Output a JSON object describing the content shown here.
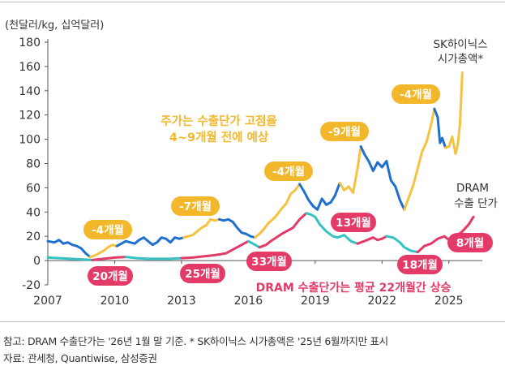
{
  "unit_label": "(천달러/kg, 십억달러)",
  "colors": {
    "stock_blue": "#1f6fd1",
    "stock_yellow": "#f5c242",
    "dram_teal": "#36c2c2",
    "dram_pink": "#e33a67",
    "annotation_yellow": "#f2b72a",
    "annotation_pink": "#e33a67"
  },
  "chart_data": {
    "type": "line",
    "title": "",
    "xlim": [
      2007,
      2026.5
    ],
    "ylim": [
      -20,
      180
    ],
    "x_ticks": [
      2007,
      2010,
      2013,
      2016,
      2019,
      2022,
      2025
    ],
    "x_tick_labels": [
      "2007",
      "2010",
      "2013",
      "2016",
      "2019",
      "2022",
      "2025"
    ],
    "y_ticks": [
      -20,
      0,
      20,
      40,
      60,
      80,
      100,
      120,
      140,
      160,
      180
    ],
    "y_tick_labels": [
      "-20",
      "0",
      "20",
      "40",
      "60",
      "80",
      "100",
      "120",
      "140",
      "160",
      "180"
    ],
    "series": [
      {
        "name": "SK하이닉스 시가총액*",
        "label_lines": [
          "SK하이닉스",
          "시가총액*"
        ],
        "style": "blue-falling / yellow-rising",
        "points": [
          [
            2007.0,
            16
          ],
          [
            2007.3,
            15
          ],
          [
            2007.5,
            17
          ],
          [
            2007.7,
            14
          ],
          [
            2007.9,
            15
          ],
          [
            2008.1,
            13
          ],
          [
            2008.3,
            12
          ],
          [
            2008.5,
            10
          ],
          [
            2008.7,
            6
          ],
          [
            2008.9,
            3
          ],
          [
            2009.1,
            4
          ],
          [
            2009.3,
            6
          ],
          [
            2009.5,
            8
          ],
          [
            2009.7,
            11
          ],
          [
            2009.9,
            13
          ],
          [
            2010.1,
            12
          ],
          [
            2010.3,
            14
          ],
          [
            2010.5,
            16
          ],
          [
            2010.7,
            15
          ],
          [
            2010.9,
            14
          ],
          [
            2011.1,
            17
          ],
          [
            2011.3,
            19
          ],
          [
            2011.5,
            16
          ],
          [
            2011.7,
            13
          ],
          [
            2011.9,
            15
          ],
          [
            2012.1,
            19
          ],
          [
            2012.3,
            18
          ],
          [
            2012.5,
            15
          ],
          [
            2012.7,
            19
          ],
          [
            2012.9,
            18
          ],
          [
            2013.1,
            19
          ],
          [
            2013.3,
            20
          ],
          [
            2013.5,
            21
          ],
          [
            2013.7,
            24
          ],
          [
            2013.9,
            27
          ],
          [
            2014.1,
            29
          ],
          [
            2014.3,
            34
          ],
          [
            2014.5,
            33
          ],
          [
            2014.7,
            34
          ],
          [
            2014.9,
            33
          ],
          [
            2015.1,
            34
          ],
          [
            2015.3,
            32
          ],
          [
            2015.5,
            27
          ],
          [
            2015.7,
            23
          ],
          [
            2015.9,
            22
          ],
          [
            2016.1,
            20
          ],
          [
            2016.3,
            19
          ],
          [
            2016.5,
            22
          ],
          [
            2016.7,
            26
          ],
          [
            2016.9,
            31
          ],
          [
            2017.1,
            34
          ],
          [
            2017.3,
            38
          ],
          [
            2017.5,
            43
          ],
          [
            2017.7,
            47
          ],
          [
            2017.9,
            55
          ],
          [
            2018.1,
            58
          ],
          [
            2018.3,
            63
          ],
          [
            2018.5,
            57
          ],
          [
            2018.7,
            50
          ],
          [
            2018.9,
            45
          ],
          [
            2019.1,
            42
          ],
          [
            2019.3,
            51
          ],
          [
            2019.5,
            46
          ],
          [
            2019.7,
            48
          ],
          [
            2019.9,
            54
          ],
          [
            2020.1,
            64
          ],
          [
            2020.3,
            58
          ],
          [
            2020.5,
            61
          ],
          [
            2020.7,
            56
          ],
          [
            2020.9,
            76
          ],
          [
            2021.05,
            94
          ],
          [
            2021.2,
            88
          ],
          [
            2021.4,
            82
          ],
          [
            2021.6,
            74
          ],
          [
            2021.8,
            81
          ],
          [
            2022.0,
            77
          ],
          [
            2022.2,
            82
          ],
          [
            2022.4,
            66
          ],
          [
            2022.6,
            61
          ],
          [
            2022.8,
            50
          ],
          [
            2023.0,
            42
          ],
          [
            2023.2,
            52
          ],
          [
            2023.4,
            62
          ],
          [
            2023.6,
            76
          ],
          [
            2023.8,
            90
          ],
          [
            2024.0,
            98
          ],
          [
            2024.2,
            112
          ],
          [
            2024.35,
            125
          ],
          [
            2024.5,
            118
          ],
          [
            2024.6,
            97
          ],
          [
            2024.7,
            101
          ],
          [
            2024.85,
            93
          ],
          [
            2025.0,
            94
          ],
          [
            2025.15,
            102
          ],
          [
            2025.3,
            88
          ],
          [
            2025.4,
            96
          ],
          [
            2025.5,
            113
          ],
          [
            2025.6,
            155
          ]
        ]
      },
      {
        "name": "DRAM 수출 단가",
        "label_lines": [
          "DRAM",
          "수출 단가"
        ],
        "style": "teal-falling / pink-rising",
        "points": [
          [
            2007.0,
            2.5
          ],
          [
            2007.5,
            2
          ],
          [
            2008.0,
            1.5
          ],
          [
            2008.5,
            1
          ],
          [
            2009.0,
            0.5
          ],
          [
            2009.5,
            1.5
          ],
          [
            2010.0,
            2.5
          ],
          [
            2010.5,
            3
          ],
          [
            2011.0,
            2
          ],
          [
            2011.5,
            1.5
          ],
          [
            2012.0,
            1.5
          ],
          [
            2012.5,
            1.5
          ],
          [
            2013.0,
            2
          ],
          [
            2013.5,
            2.5
          ],
          [
            2014.0,
            3.5
          ],
          [
            2014.5,
            4.5
          ],
          [
            2015.0,
            6
          ],
          [
            2015.5,
            11
          ],
          [
            2015.8,
            14
          ],
          [
            2016.0,
            16
          ],
          [
            2016.2,
            14
          ],
          [
            2016.5,
            11
          ],
          [
            2016.8,
            13
          ],
          [
            2017.0,
            16
          ],
          [
            2017.5,
            22
          ],
          [
            2018.0,
            27
          ],
          [
            2018.3,
            34
          ],
          [
            2018.6,
            39
          ],
          [
            2018.8,
            38
          ],
          [
            2019.0,
            36
          ],
          [
            2019.2,
            30
          ],
          [
            2019.5,
            24
          ],
          [
            2019.8,
            20
          ],
          [
            2020.0,
            19
          ],
          [
            2020.3,
            21
          ],
          [
            2020.6,
            16
          ],
          [
            2020.9,
            14
          ],
          [
            2021.2,
            16
          ],
          [
            2021.6,
            19
          ],
          [
            2021.8,
            17
          ],
          [
            2022.0,
            18
          ],
          [
            2022.2,
            20
          ],
          [
            2022.5,
            19
          ],
          [
            2022.8,
            15
          ],
          [
            2023.0,
            11
          ],
          [
            2023.3,
            8
          ],
          [
            2023.6,
            7
          ],
          [
            2023.9,
            12
          ],
          [
            2024.2,
            14
          ],
          [
            2024.5,
            18
          ],
          [
            2024.8,
            20
          ],
          [
            2025.0,
            17
          ],
          [
            2025.3,
            20
          ],
          [
            2025.6,
            24
          ],
          [
            2025.9,
            30
          ],
          [
            2026.1,
            36
          ]
        ]
      }
    ],
    "annotations": [
      {
        "text": "주가는 수출단가 고점을",
        "kind": "note"
      },
      {
        "text": "4~9개월 전에 예상",
        "kind": "note"
      },
      {
        "text": "DRAM 수출단가는 평균 22개월간 상승",
        "kind": "note-pink"
      },
      {
        "text": "-4개월",
        "kind": "yellow-badge"
      },
      {
        "text": "-7개월",
        "kind": "yellow-badge"
      },
      {
        "text": "-4개월",
        "kind": "yellow-badge"
      },
      {
        "text": "-9개월",
        "kind": "yellow-badge"
      },
      {
        "text": "-4개월",
        "kind": "yellow-badge"
      },
      {
        "text": "20개월",
        "kind": "pink-badge"
      },
      {
        "text": "25개월",
        "kind": "pink-badge"
      },
      {
        "text": "33개월",
        "kind": "pink-badge"
      },
      {
        "text": "13개월",
        "kind": "pink-badge"
      },
      {
        "text": "18개월",
        "kind": "pink-badge"
      },
      {
        "text": "8개월",
        "kind": "pink-badge"
      }
    ]
  },
  "footnote": "참고: DRAM 수출단가는 '26년 1월 말 기준. * SK하이닉스 시가총액은 '25년 6월까지만 표시",
  "source": "자료: 관세청, Quantiwise, 삼성증권"
}
